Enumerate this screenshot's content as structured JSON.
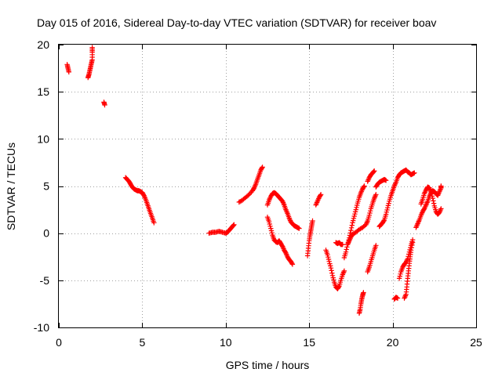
{
  "chart_data": {
    "type": "scatter",
    "title": "Day 015 of 2016, Sidereal Day-to-day VTEC variation (SDTVAR) for receiver boav",
    "xlabel": "GPS time / hours",
    "ylabel": "SDTVAR / TECUs",
    "xlim": [
      0,
      25
    ],
    "ylim": [
      -10,
      20
    ],
    "xticks": [
      0,
      5,
      10,
      15,
      20,
      25
    ],
    "yticks": [
      -10,
      -5,
      0,
      5,
      10,
      15,
      20
    ],
    "xtick_labels": [
      "0",
      "5",
      "10",
      "15",
      "20",
      "25"
    ],
    "ytick_labels": [
      "-10",
      "-5",
      "0",
      "5",
      "10",
      "15",
      "20"
    ],
    "grid": true,
    "marker": "+",
    "color": "#ff0000",
    "segments": [
      [
        [
          0.5,
          17.9
        ],
        [
          0.55,
          17.5
        ],
        [
          0.6,
          17.1
        ]
      ],
      [
        [
          1.75,
          16.5
        ],
        [
          1.8,
          16.8
        ],
        [
          1.85,
          17.2
        ],
        [
          1.9,
          17.6
        ],
        [
          1.95,
          18.0
        ],
        [
          2.0,
          18.4
        ],
        [
          2.0,
          19.2
        ],
        [
          2.0,
          19.7
        ]
      ],
      [
        [
          2.7,
          13.9
        ],
        [
          2.75,
          13.6
        ]
      ],
      [
        [
          4.0,
          5.9
        ],
        [
          4.1,
          5.7
        ],
        [
          4.2,
          5.5
        ],
        [
          4.3,
          5.2
        ],
        [
          4.4,
          4.9
        ],
        [
          4.5,
          4.7
        ],
        [
          4.6,
          4.6
        ],
        [
          4.7,
          4.5
        ],
        [
          4.8,
          4.5
        ],
        [
          4.9,
          4.4
        ],
        [
          5.0,
          4.3
        ],
        [
          5.1,
          4.0
        ],
        [
          5.2,
          3.6
        ],
        [
          5.3,
          3.1
        ],
        [
          5.4,
          2.6
        ],
        [
          5.5,
          2.1
        ],
        [
          5.6,
          1.6
        ],
        [
          5.7,
          1.1
        ]
      ],
      [
        [
          9.0,
          0.0
        ],
        [
          9.2,
          0.1
        ],
        [
          9.4,
          0.1
        ],
        [
          9.6,
          0.2
        ],
        [
          9.8,
          0.1
        ],
        [
          10.0,
          0.0
        ],
        [
          10.1,
          0.1
        ],
        [
          10.2,
          0.3
        ],
        [
          10.3,
          0.5
        ],
        [
          10.4,
          0.7
        ],
        [
          10.5,
          0.9
        ]
      ],
      [
        [
          10.8,
          3.3
        ],
        [
          11.0,
          3.5
        ],
        [
          11.2,
          3.8
        ],
        [
          11.4,
          4.1
        ],
        [
          11.6,
          4.5
        ],
        [
          11.7,
          4.8
        ],
        [
          11.8,
          5.2
        ],
        [
          11.9,
          5.7
        ],
        [
          12.0,
          6.2
        ],
        [
          12.1,
          6.7
        ],
        [
          12.2,
          7.0
        ]
      ],
      [
        [
          12.5,
          3.0
        ],
        [
          12.6,
          3.5
        ],
        [
          12.7,
          3.9
        ],
        [
          12.8,
          4.2
        ],
        [
          12.9,
          4.3
        ],
        [
          13.0,
          4.2
        ],
        [
          13.1,
          4.0
        ],
        [
          13.2,
          3.8
        ],
        [
          13.3,
          3.6
        ],
        [
          13.4,
          3.4
        ],
        [
          13.5,
          3.0
        ],
        [
          13.6,
          2.5
        ],
        [
          13.7,
          2.1
        ],
        [
          13.8,
          1.6
        ],
        [
          13.9,
          1.2
        ],
        [
          14.0,
          1.0
        ],
        [
          14.1,
          0.8
        ],
        [
          14.2,
          0.7
        ],
        [
          14.3,
          0.6
        ],
        [
          14.4,
          0.5
        ]
      ],
      [
        [
          12.5,
          1.7
        ],
        [
          12.6,
          1.2
        ],
        [
          12.7,
          0.5
        ],
        [
          12.8,
          -0.2
        ],
        [
          12.9,
          -0.7
        ],
        [
          13.0,
          -0.9
        ],
        [
          13.1,
          -1.0
        ],
        [
          13.2,
          -0.8
        ],
        [
          13.3,
          -1.1
        ],
        [
          13.4,
          -1.4
        ],
        [
          13.5,
          -1.8
        ],
        [
          13.6,
          -2.1
        ],
        [
          13.7,
          -2.5
        ],
        [
          13.8,
          -2.8
        ],
        [
          13.9,
          -3.0
        ],
        [
          14.0,
          -3.3
        ]
      ],
      [
        [
          14.9,
          -2.4
        ],
        [
          14.95,
          -1.6
        ],
        [
          15.0,
          -0.8
        ],
        [
          15.05,
          -0.2
        ],
        [
          15.1,
          0.3
        ],
        [
          15.15,
          0.8
        ],
        [
          15.2,
          1.3
        ]
      ],
      [
        [
          15.4,
          3.0
        ],
        [
          15.5,
          3.4
        ],
        [
          15.6,
          3.8
        ],
        [
          15.7,
          4.1
        ]
      ],
      [
        [
          16.0,
          -1.8
        ],
        [
          16.1,
          -2.3
        ],
        [
          16.2,
          -3.0
        ],
        [
          16.3,
          -3.7
        ],
        [
          16.4,
          -4.5
        ],
        [
          16.5,
          -5.2
        ],
        [
          16.6,
          -5.7
        ],
        [
          16.7,
          -5.9
        ],
        [
          16.8,
          -5.6
        ],
        [
          16.9,
          -5.0
        ],
        [
          17.0,
          -4.4
        ],
        [
          17.1,
          -4.0
        ]
      ],
      [
        [
          16.6,
          -1.0
        ],
        [
          16.7,
          -1.1
        ],
        [
          16.8,
          -1.0
        ],
        [
          16.9,
          -1.2
        ],
        [
          17.0,
          -1.2
        ]
      ],
      [
        [
          17.1,
          -2.6
        ],
        [
          17.2,
          -2.0
        ],
        [
          17.3,
          -1.2
        ],
        [
          17.4,
          -0.5
        ],
        [
          17.5,
          0.3
        ],
        [
          17.6,
          1.1
        ],
        [
          17.7,
          1.8
        ],
        [
          17.8,
          2.5
        ],
        [
          17.9,
          3.2
        ],
        [
          18.0,
          3.8
        ],
        [
          18.1,
          4.3
        ],
        [
          18.2,
          4.7
        ],
        [
          18.3,
          5.0
        ]
      ],
      [
        [
          17.3,
          -1.2
        ],
        [
          17.4,
          -0.8
        ],
        [
          17.5,
          -0.4
        ],
        [
          17.6,
          -0.1
        ],
        [
          17.8,
          0.1
        ],
        [
          18.0,
          0.4
        ],
        [
          18.2,
          0.6
        ],
        [
          18.4,
          0.9
        ],
        [
          18.5,
          1.3
        ],
        [
          18.6,
          1.9
        ],
        [
          18.7,
          2.6
        ],
        [
          18.8,
          3.2
        ],
        [
          18.9,
          3.7
        ],
        [
          19.0,
          4.1
        ]
      ],
      [
        [
          18.0,
          -8.5
        ],
        [
          18.05,
          -8.1
        ],
        [
          18.1,
          -7.5
        ],
        [
          18.15,
          -7.0
        ],
        [
          18.2,
          -6.6
        ],
        [
          18.25,
          -6.3
        ]
      ],
      [
        [
          18.5,
          -4.1
        ],
        [
          18.6,
          -3.6
        ],
        [
          18.7,
          -3.0
        ],
        [
          18.8,
          -2.4
        ],
        [
          18.9,
          -1.8
        ],
        [
          19.0,
          -1.3
        ]
      ],
      [
        [
          18.5,
          5.5
        ],
        [
          18.6,
          5.9
        ],
        [
          18.7,
          6.2
        ],
        [
          18.8,
          6.4
        ],
        [
          18.9,
          6.6
        ]
      ],
      [
        [
          19.0,
          4.9
        ],
        [
          19.1,
          5.2
        ],
        [
          19.2,
          5.4
        ],
        [
          19.3,
          5.5
        ],
        [
          19.4,
          5.6
        ],
        [
          19.5,
          5.7
        ],
        [
          19.6,
          5.6
        ]
      ],
      [
        [
          19.2,
          0.7
        ],
        [
          19.3,
          0.9
        ],
        [
          19.4,
          1.1
        ],
        [
          19.5,
          1.4
        ],
        [
          19.6,
          2.0
        ],
        [
          19.7,
          2.7
        ],
        [
          19.8,
          3.4
        ],
        [
          19.9,
          4.0
        ],
        [
          20.0,
          4.5
        ],
        [
          20.1,
          5.0
        ],
        [
          20.2,
          5.4
        ],
        [
          20.3,
          5.9
        ],
        [
          20.4,
          6.2
        ],
        [
          20.5,
          6.4
        ],
        [
          20.6,
          6.5
        ],
        [
          20.7,
          6.6
        ],
        [
          20.8,
          6.7
        ],
        [
          20.9,
          6.5
        ],
        [
          21.0,
          6.4
        ],
        [
          21.1,
          6.2
        ],
        [
          21.2,
          6.3
        ],
        [
          21.3,
          6.4
        ]
      ],
      [
        [
          20.1,
          -7.0
        ],
        [
          20.2,
          -6.8
        ],
        [
          20.3,
          -6.9
        ]
      ],
      [
        [
          20.4,
          -4.8
        ],
        [
          20.5,
          -4.1
        ],
        [
          20.6,
          -3.6
        ],
        [
          20.7,
          -3.3
        ],
        [
          20.8,
          -3.1
        ],
        [
          20.9,
          -2.7
        ],
        [
          21.0,
          -2.0
        ],
        [
          21.1,
          -1.3
        ],
        [
          21.2,
          -0.7
        ]
      ],
      [
        [
          20.7,
          -6.9
        ],
        [
          20.8,
          -6.5
        ],
        [
          20.85,
          -5.7
        ],
        [
          20.9,
          -4.8
        ],
        [
          20.95,
          -4.0
        ],
        [
          21.0,
          -3.2
        ],
        [
          21.05,
          -2.5
        ],
        [
          21.1,
          -1.8
        ],
        [
          21.2,
          -1.0
        ]
      ],
      [
        [
          21.4,
          0.6
        ],
        [
          21.5,
          1.0
        ],
        [
          21.6,
          1.4
        ],
        [
          21.7,
          1.9
        ],
        [
          21.8,
          2.3
        ],
        [
          21.9,
          2.6
        ],
        [
          22.0,
          3.0
        ],
        [
          22.1,
          3.4
        ],
        [
          22.2,
          3.9
        ],
        [
          22.3,
          4.3
        ],
        [
          22.4,
          4.5
        ],
        [
          22.5,
          4.4
        ],
        [
          22.6,
          4.2
        ],
        [
          22.7,
          4.0
        ],
        [
          22.8,
          4.4
        ],
        [
          22.9,
          4.8
        ],
        [
          22.9,
          5.0
        ]
      ],
      [
        [
          21.7,
          3.1
        ],
        [
          21.8,
          3.6
        ],
        [
          21.9,
          4.2
        ],
        [
          22.0,
          4.6
        ],
        [
          22.1,
          4.9
        ],
        [
          22.2,
          4.8
        ],
        [
          22.3,
          4.4
        ],
        [
          22.4,
          3.7
        ],
        [
          22.5,
          2.9
        ],
        [
          22.6,
          2.3
        ],
        [
          22.7,
          2.0
        ],
        [
          22.8,
          2.2
        ],
        [
          22.9,
          2.6
        ]
      ]
    ]
  }
}
